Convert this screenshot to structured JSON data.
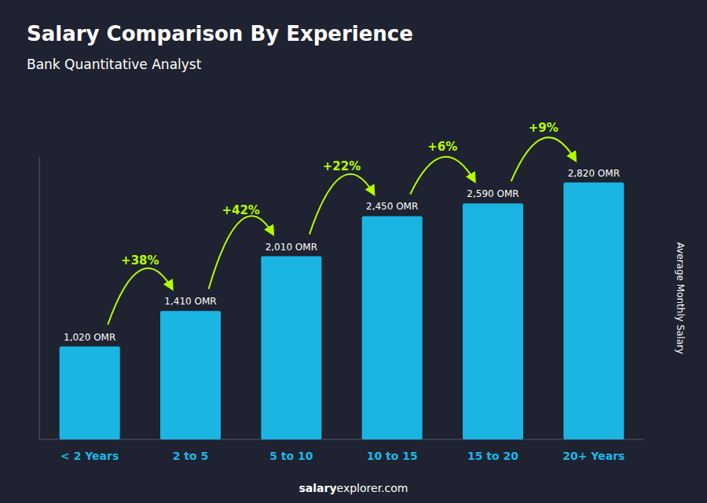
{
  "chart_data": {
    "type": "bar",
    "title": "Salary Comparison By Experience",
    "subtitle": "Bank Quantitative Analyst",
    "ylabel": "Average Monthly Salary",
    "categories": [
      "< 2 Years",
      "2 to 5",
      "5 to 10",
      "10 to 15",
      "15 to 20",
      "20+ Years"
    ],
    "values": [
      1020,
      1410,
      2010,
      2450,
      2590,
      2820
    ],
    "value_labels": [
      "1,020 OMR",
      "1,410 OMR",
      "2,010 OMR",
      "2,450 OMR",
      "2,590 OMR",
      "2,820 OMR"
    ],
    "data_labels": true,
    "color": "#1ab5e3",
    "ylim": [
      0,
      3100
    ],
    "tick_labels": "x",
    "grid": false,
    "annotations": [
      {
        "text": "+38%",
        "from": "< 2 Years",
        "to": "2 to 5"
      },
      {
        "text": "+42%",
        "from": "2 to 5",
        "to": "5 to 10"
      },
      {
        "text": "+22%",
        "from": "5 to 10",
        "to": "10 to 15"
      },
      {
        "text": "+6%",
        "from": "10 to 15",
        "to": "15 to 20"
      },
      {
        "text": "+9%",
        "from": "15 to 20",
        "to": "20+ Years"
      }
    ],
    "footer": [
      "salary",
      "explorer.com"
    ]
  }
}
